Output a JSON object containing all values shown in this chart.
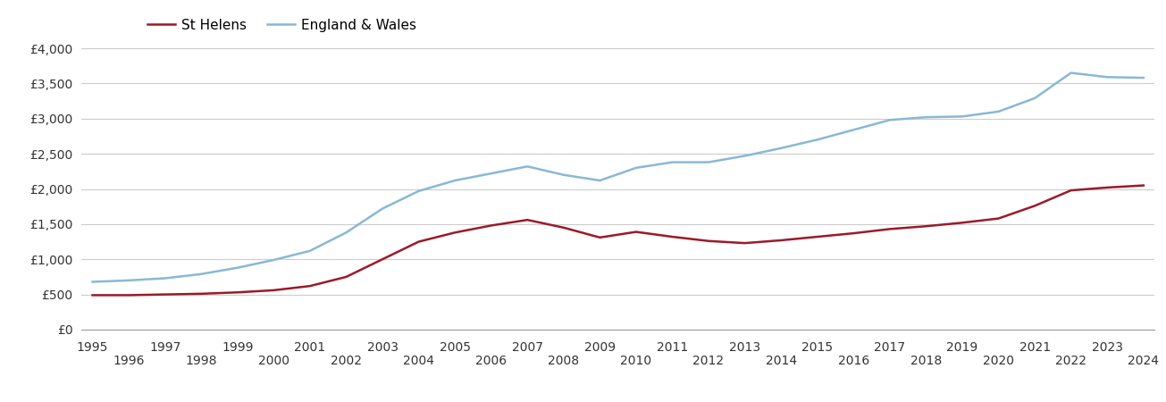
{
  "years": [
    1995,
    1996,
    1997,
    1998,
    1999,
    2000,
    2001,
    2002,
    2003,
    2004,
    2005,
    2006,
    2007,
    2008,
    2009,
    2010,
    2011,
    2012,
    2013,
    2014,
    2015,
    2016,
    2017,
    2018,
    2019,
    2020,
    2021,
    2022,
    2023,
    2024
  ],
  "st_helens": [
    490,
    490,
    500,
    510,
    530,
    560,
    620,
    750,
    1000,
    1250,
    1380,
    1480,
    1560,
    1450,
    1310,
    1390,
    1320,
    1260,
    1230,
    1270,
    1320,
    1370,
    1430,
    1470,
    1520,
    1580,
    1760,
    1980,
    2020,
    2050
  ],
  "england_wales": [
    680,
    700,
    730,
    790,
    880,
    990,
    1120,
    1380,
    1720,
    1970,
    2120,
    2220,
    2320,
    2200,
    2120,
    2300,
    2380,
    2380,
    2470,
    2580,
    2700,
    2840,
    2980,
    3020,
    3030,
    3100,
    3290,
    3650,
    3590,
    3580
  ],
  "st_helens_color": "#9b1a2a",
  "england_wales_color": "#89b8d4",
  "background_color": "#ffffff",
  "grid_color": "#cccccc",
  "ylim": [
    0,
    4000
  ],
  "yticks": [
    0,
    500,
    1000,
    1500,
    2000,
    2500,
    3000,
    3500,
    4000
  ],
  "ytick_labels": [
    "£0",
    "£500",
    "£1,000",
    "£1,500",
    "£2,000",
    "£2,500",
    "£3,000",
    "£3,500",
    "£4,000"
  ],
  "legend_labels": [
    "St Helens",
    "England & Wales"
  ],
  "line_width": 1.8
}
